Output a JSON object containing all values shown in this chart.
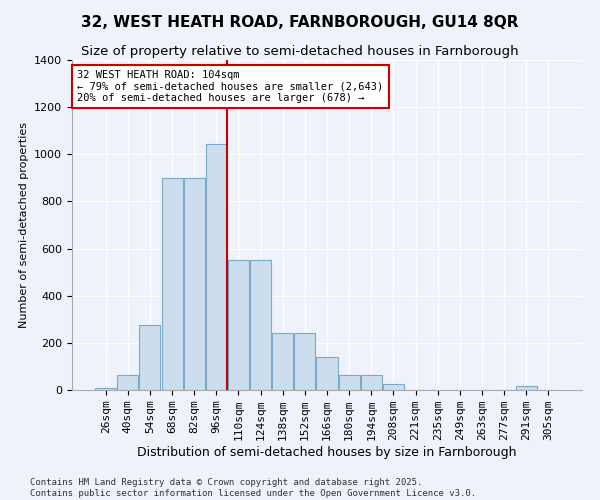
{
  "title1": "32, WEST HEATH ROAD, FARNBOROUGH, GU14 8QR",
  "title2": "Size of property relative to semi-detached houses in Farnborough",
  "xlabel": "Distribution of semi-detached houses by size in Farnborough",
  "ylabel": "Number of semi-detached properties",
  "categories": [
    "26sqm",
    "40sqm",
    "54sqm",
    "68sqm",
    "82sqm",
    "96sqm",
    "110sqm",
    "124sqm",
    "138sqm",
    "152sqm",
    "166sqm",
    "180sqm",
    "194sqm",
    "208sqm",
    "221sqm",
    "235sqm",
    "249sqm",
    "263sqm",
    "277sqm",
    "291sqm",
    "305sqm"
  ],
  "values": [
    10,
    65,
    275,
    900,
    900,
    1045,
    550,
    550,
    240,
    240,
    140,
    65,
    65,
    25,
    0,
    0,
    0,
    0,
    0,
    15,
    0
  ],
  "bar_color": "#ccdded",
  "bar_edge_color": "#7aaac8",
  "vline_x_idx": 5,
  "vline_color": "#cc0000",
  "annotation_text": "32 WEST HEATH ROAD: 104sqm\n← 79% of semi-detached houses are smaller (2,643)\n20% of semi-detached houses are larger (678) →",
  "annotation_box_color": "white",
  "annotation_box_edge_color": "#cc0000",
  "ylim": [
    0,
    1400
  ],
  "yticks": [
    0,
    200,
    400,
    600,
    800,
    1000,
    1200,
    1400
  ],
  "bg_color": "#eef2fa",
  "footer": "Contains HM Land Registry data © Crown copyright and database right 2025.\nContains public sector information licensed under the Open Government Licence v3.0.",
  "title1_fontsize": 11,
  "title2_fontsize": 9.5,
  "xlabel_fontsize": 9,
  "ylabel_fontsize": 8,
  "tick_fontsize": 8,
  "footer_fontsize": 6.5
}
